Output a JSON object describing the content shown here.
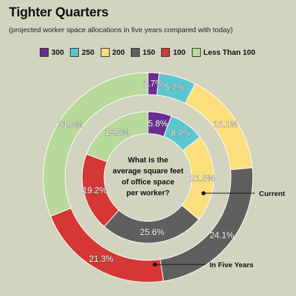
{
  "title": "Tighter Quarters",
  "subtitle": "(projected worker space allocations in five years compared with today)",
  "legend": [
    {
      "label": "300",
      "color": "#6a2c91"
    },
    {
      "label": "250",
      "color": "#5bc6cf"
    },
    {
      "label": "200",
      "color": "#fbdf7c"
    },
    {
      "label": "150",
      "color": "#5f5f5f"
    },
    {
      "label": "100",
      "color": "#d43734"
    },
    {
      "label": "Less Than 100",
      "color": "#b7d99a"
    }
  ],
  "center_question": [
    "What is the",
    "average square feet",
    "of office space",
    "per worker?"
  ],
  "chart_data": {
    "type": "donut",
    "title": "Tighter Quarters",
    "subtitle": "(projected worker space allocations in five years compared with today)",
    "categories": [
      "300",
      "250",
      "200",
      "150",
      "100",
      "Less Than 100"
    ],
    "series": [
      {
        "name": "Current",
        "values": [
          5.8,
          8.7,
          21.5,
          25.6,
          19.2,
          19.2
        ]
      },
      {
        "name": "In Five Years",
        "values": [
          1.7,
          5.7,
          16.1,
          24.1,
          21.3,
          31.0
        ]
      }
    ],
    "unit": "%",
    "legend_position": "top"
  }
}
